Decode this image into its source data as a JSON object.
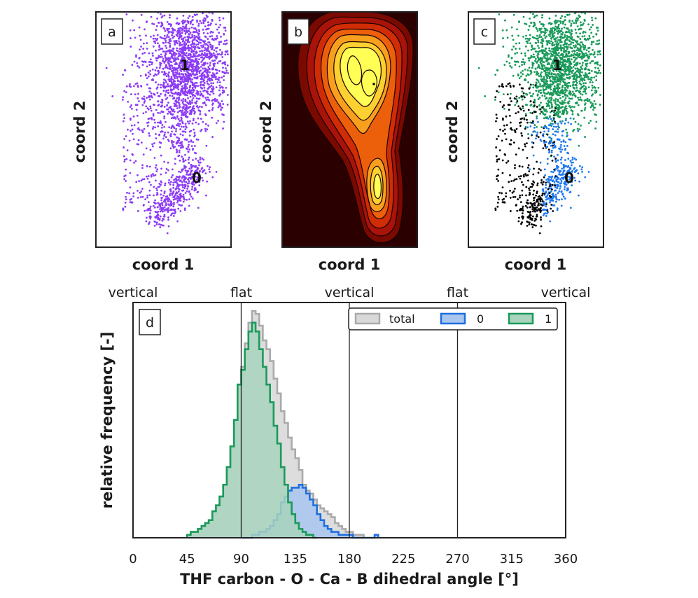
{
  "panels": {
    "a": {
      "letter": "a",
      "xlabel": "coord 1",
      "ylabel": "coord 2",
      "clusters": [
        "1",
        "0"
      ],
      "point_color": "#8c3cf5"
    },
    "b": {
      "letter": "b",
      "xlabel": "coord 1",
      "ylabel": "coord 2",
      "colormap": [
        "#2a0000",
        "#7a0a00",
        "#c01a00",
        "#e8500a",
        "#f59a1a",
        "#fbd33a",
        "#ffff55"
      ]
    },
    "c": {
      "letter": "c",
      "xlabel": "coord 1",
      "ylabel": "coord 2",
      "clusters": [
        "1",
        "0"
      ],
      "colors": {
        "1": "#1a9a5a",
        "0": "#1f77f0",
        "noise": "#000000"
      }
    },
    "d": {
      "letter": "d"
    }
  },
  "chart_data": {
    "type": "histogram",
    "xlabel": "THF carbon - O - Ca - B dihedral angle [°]",
    "ylabel": "relative frequency [-]",
    "xlim": [
      0,
      360
    ],
    "xticks": [
      0,
      45,
      90,
      135,
      180,
      225,
      270,
      315,
      360
    ],
    "orientation_labels": [
      {
        "x": 0,
        "text": "vertical"
      },
      {
        "x": 90,
        "text": "flat"
      },
      {
        "x": 180,
        "text": "vertical"
      },
      {
        "x": 270,
        "text": "flat"
      },
      {
        "x": 360,
        "text": "vertical"
      }
    ],
    "vlines": [
      90,
      180,
      270
    ],
    "legend": {
      "location": "upper right",
      "columns": 3
    },
    "series": [
      {
        "name": "total",
        "color": "#aaaaaa",
        "fill": "#d9d9d9",
        "bin_start": 45,
        "bin_width": 3,
        "values": [
          1,
          2,
          2,
          3,
          4,
          5,
          6,
          9,
          11,
          14,
          18,
          24,
          31,
          40,
          52,
          58,
          66,
          73,
          77,
          76,
          72,
          67,
          64,
          60,
          54,
          49,
          43,
          39,
          34,
          30,
          27,
          23,
          18,
          16,
          15,
          13,
          11,
          10,
          9,
          8,
          7,
          5,
          4,
          3,
          2,
          2,
          1,
          1,
          1
        ]
      },
      {
        "name": "0",
        "color": "#1f6fe0",
        "fill": "#a9c6ee",
        "bin_start": 90,
        "bin_width": 3,
        "values": [
          0,
          0,
          0,
          1,
          1,
          2,
          2,
          3,
          4,
          6,
          8,
          12,
          14,
          16,
          17,
          17,
          18,
          17,
          15,
          13,
          11,
          8,
          6,
          4,
          3,
          2,
          2,
          1,
          1,
          1,
          1,
          0,
          0,
          0,
          0,
          0,
          0,
          1
        ]
      },
      {
        "name": "1",
        "color": "#1a9a5a",
        "fill": "#a8d3bd",
        "bin_start": 45,
        "bin_width": 3,
        "values": [
          1,
          2,
          2,
          3,
          4,
          5,
          6,
          9,
          11,
          14,
          18,
          24,
          31,
          40,
          52,
          57,
          64,
          70,
          73,
          70,
          64,
          58,
          52,
          46,
          38,
          32,
          24,
          18,
          12,
          8,
          5,
          3,
          2,
          1,
          1,
          0
        ]
      }
    ]
  }
}
